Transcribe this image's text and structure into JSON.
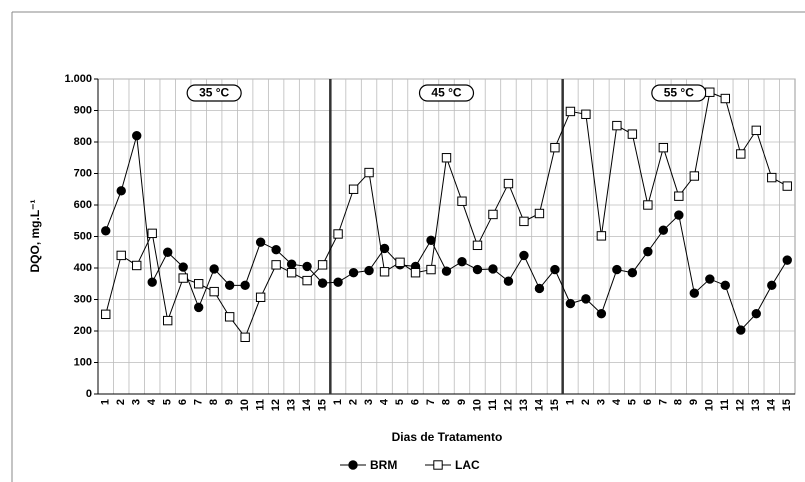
{
  "chart_data": {
    "type": "line",
    "x_label": "Dias de Tratamento",
    "y_label": "DQO, mg.L⁻¹",
    "categories": [
      "1",
      "2",
      "3",
      "4",
      "5",
      "6",
      "7",
      "8",
      "9",
      "10",
      "11",
      "12",
      "13",
      "14",
      "15",
      "1",
      "2",
      "3",
      "4",
      "5",
      "6",
      "7",
      "8",
      "9",
      "10",
      "11",
      "12",
      "13",
      "14",
      "15",
      "1",
      "2",
      "3",
      "4",
      "5",
      "6",
      "7",
      "8",
      "9",
      "10",
      "11",
      "12",
      "13",
      "14",
      "15"
    ],
    "annotations": [
      "35 °C",
      "45 °C",
      "55 °C"
    ],
    "series": [
      {
        "name": "BRM",
        "color": "#000000",
        "marker": "circle",
        "values": [
          518,
          645,
          820,
          355,
          450,
          403,
          275,
          397,
          345,
          345,
          482,
          458,
          412,
          405,
          352,
          355,
          385,
          392,
          462,
          410,
          405,
          488,
          390,
          420,
          395,
          397,
          358,
          440,
          335,
          395,
          287,
          302,
          255,
          395,
          385,
          452,
          520,
          568,
          320,
          365,
          345,
          203,
          255,
          345,
          425
        ]
      },
      {
        "name": "LAC",
        "color": "#000000",
        "marker": "square",
        "values": [
          253,
          440,
          408,
          510,
          233,
          368,
          350,
          325,
          245,
          180,
          307,
          410,
          385,
          360,
          410,
          508,
          650,
          703,
          388,
          418,
          385,
          395,
          750,
          612,
          472,
          570,
          668,
          548,
          573,
          782,
          897,
          888,
          502,
          852,
          825,
          600,
          782,
          628,
          692,
          958,
          938,
          762,
          837,
          687,
          660
        ]
      }
    ],
    "ylim": [
      0,
      1000
    ],
    "yticks": [
      0,
      100,
      200,
      300,
      400,
      500,
      600,
      700,
      800,
      900,
      {
        "value": 1000,
        "label": "1.000"
      }
    ],
    "grid": true,
    "legend": "bottom"
  }
}
